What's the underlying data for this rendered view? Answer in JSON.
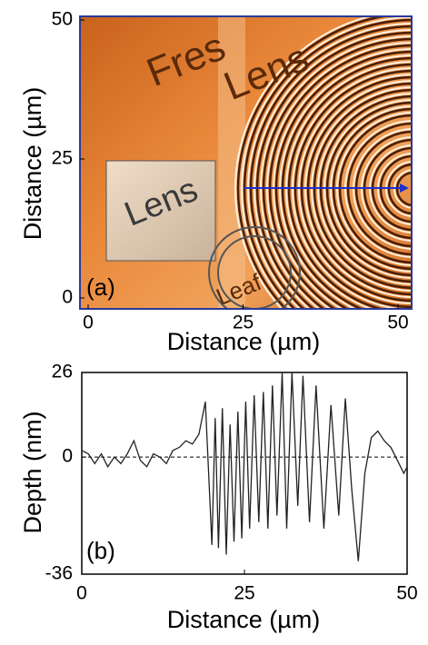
{
  "chart_data": [
    {
      "type": "image",
      "panel_label": "(a)",
      "x_label": "Distance (µm)",
      "y_label": "Distance (µm)",
      "xlim": [
        0,
        50
      ],
      "xticks": [
        0,
        25,
        50
      ],
      "ylim": [
        0,
        50
      ],
      "yticks": [
        0,
        25,
        50
      ],
      "image_text": [
        "Fres",
        "Lens",
        "Lens",
        "Leaf"
      ]
    },
    {
      "type": "line",
      "panel_label": "(b)",
      "x_label": "Distance (µm)",
      "y_label": "Depth (nm)",
      "xlim": [
        0,
        50
      ],
      "xticks": [
        0,
        25,
        50
      ],
      "ylim": [
        -36,
        26
      ],
      "yticks": [
        -36,
        0,
        26
      ],
      "color": "#222222",
      "x": [
        0,
        1,
        2,
        3,
        4,
        5,
        6,
        7,
        8,
        9,
        10,
        11,
        12,
        13,
        14,
        15,
        16,
        17,
        18,
        19,
        19.5,
        20,
        20.5,
        21,
        21.6,
        22.2,
        22.8,
        23.4,
        24,
        24.6,
        25.2,
        25.8,
        26.5,
        27.2,
        27.9,
        28.6,
        29.3,
        30,
        30.8,
        31.5,
        32.3,
        33.2,
        34,
        35,
        36,
        37.2,
        38.3,
        39.5,
        40.5,
        41.5,
        42.5,
        43.5,
        44.5,
        45.5,
        46.5,
        47.5,
        48.5,
        49.5,
        50
      ],
      "values": [
        2,
        1,
        -2,
        1,
        -3,
        0,
        -2,
        1,
        5,
        -1,
        -3,
        1,
        0,
        -2,
        2,
        3,
        5,
        4,
        7,
        17,
        -5,
        -27,
        12,
        -28,
        15,
        -30,
        10,
        -26,
        14,
        -25,
        17,
        -22,
        19,
        -20,
        20,
        -22,
        22,
        -18,
        26,
        -22,
        26,
        -15,
        25,
        -20,
        22,
        -22,
        16,
        -18,
        18,
        -10,
        -32,
        -5,
        6,
        8,
        5,
        3,
        -1,
        -5,
        -3
      ]
    }
  ]
}
